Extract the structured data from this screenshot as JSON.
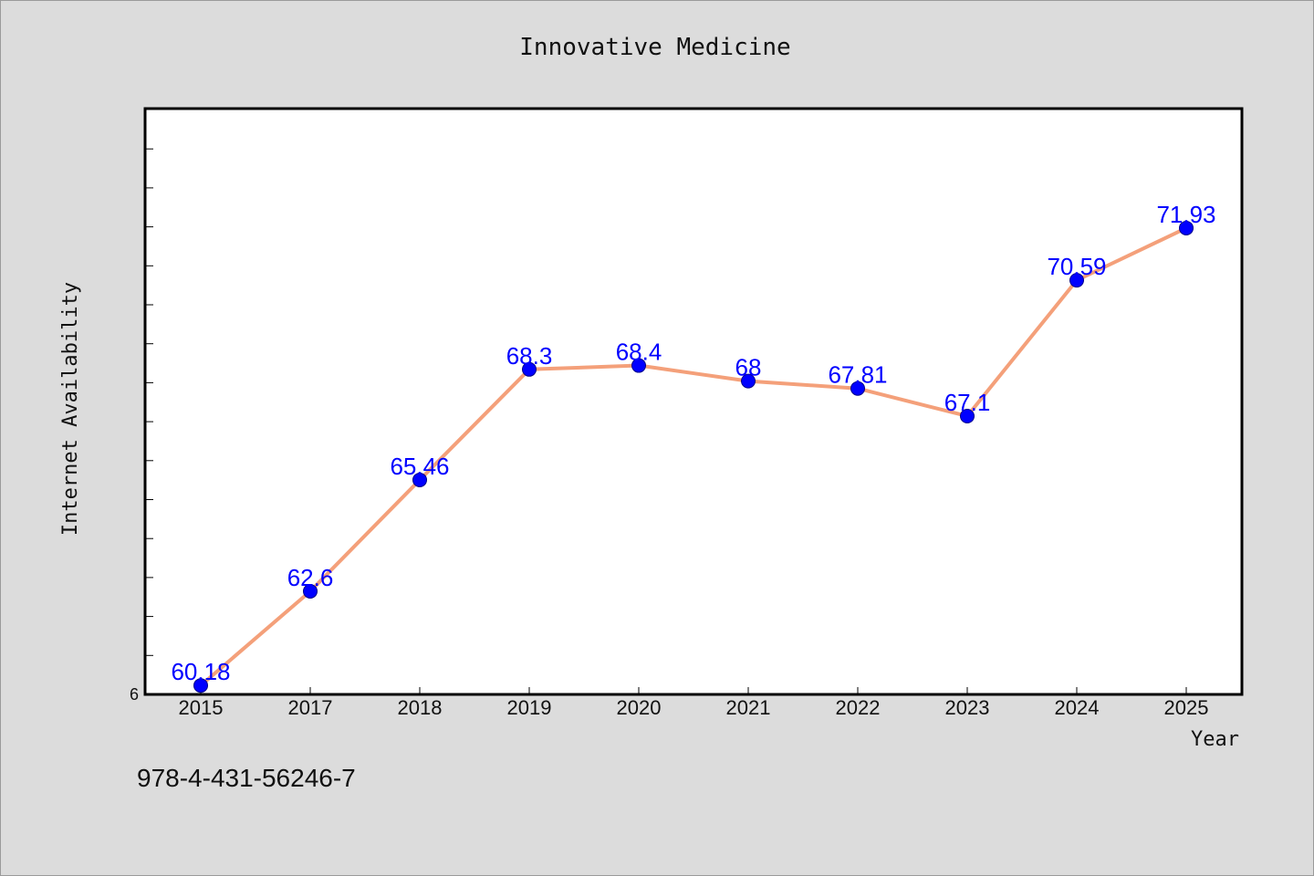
{
  "chart_data": {
    "type": "line",
    "title": "Innovative Medicine",
    "xlabel": "Year",
    "ylabel": "Internet Availability",
    "categories": [
      "2015",
      "2017",
      "2018",
      "2019",
      "2020",
      "2021",
      "2022",
      "2023",
      "2024",
      "2025"
    ],
    "series": [
      {
        "values": [
          60.18,
          62.6,
          65.46,
          68.3,
          68.4,
          68,
          67.81,
          67.1,
          70.59,
          71.93
        ],
        "labels": [
          "60.18",
          "62.6",
          "65.46",
          "68.3",
          "68.4",
          "68",
          "67.81",
          "67.1",
          "70.59",
          "71.93"
        ]
      }
    ],
    "y_tick_label": "6",
    "ylim": [
      59.95,
      75
    ],
    "grid": false,
    "line_color": "#f4a07a",
    "marker_color": "#0000ff",
    "label_color": "#0000ff",
    "background_color": "#dcdcdc",
    "plot_background_color": "#ffffff"
  },
  "footer": {
    "isbn": "978-4-431-56246-7"
  }
}
